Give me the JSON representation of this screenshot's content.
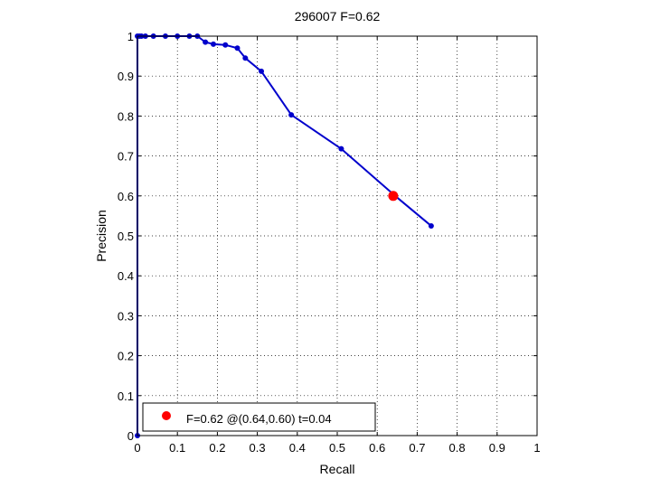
{
  "chart_data": {
    "type": "line",
    "title": "296007 F=0.62",
    "xlabel": "Recall",
    "ylabel": "Precision",
    "xlim": [
      0,
      1
    ],
    "ylim": [
      0,
      1
    ],
    "x_ticks": [
      "0",
      "0.1",
      "0.2",
      "0.3",
      "0.4",
      "0.5",
      "0.6",
      "0.7",
      "0.8",
      "0.9",
      "1"
    ],
    "y_ticks": [
      "0",
      "0.1",
      "0.2",
      "0.3",
      "0.4",
      "0.5",
      "0.6",
      "0.7",
      "0.8",
      "0.9",
      "1"
    ],
    "grid": true,
    "grid_style": "dotted",
    "series": [
      {
        "color": "#0000cc",
        "points": [
          [
            0.0,
            0.0
          ],
          [
            0.0,
            1.0
          ],
          [
            0.005,
            1.0
          ],
          [
            0.01,
            1.0
          ],
          [
            0.02,
            1.0
          ],
          [
            0.04,
            1.0
          ],
          [
            0.07,
            1.0
          ],
          [
            0.1,
            1.0
          ],
          [
            0.13,
            1.0
          ],
          [
            0.15,
            1.0
          ],
          [
            0.17,
            0.985
          ],
          [
            0.19,
            0.98
          ],
          [
            0.22,
            0.978
          ],
          [
            0.25,
            0.97
          ],
          [
            0.27,
            0.945
          ],
          [
            0.31,
            0.912
          ],
          [
            0.385,
            0.803
          ],
          [
            0.51,
            0.718
          ],
          [
            0.645,
            0.6
          ],
          [
            0.735,
            0.525
          ]
        ]
      }
    ],
    "highlight": {
      "x": 0.64,
      "y": 0.6,
      "color": "#ff0000"
    },
    "legend": {
      "position": "bottom-left",
      "entries": [
        {
          "label": "F=0.62 @(0.64,0.60) t=0.04",
          "color": "#ff0000"
        }
      ]
    }
  }
}
